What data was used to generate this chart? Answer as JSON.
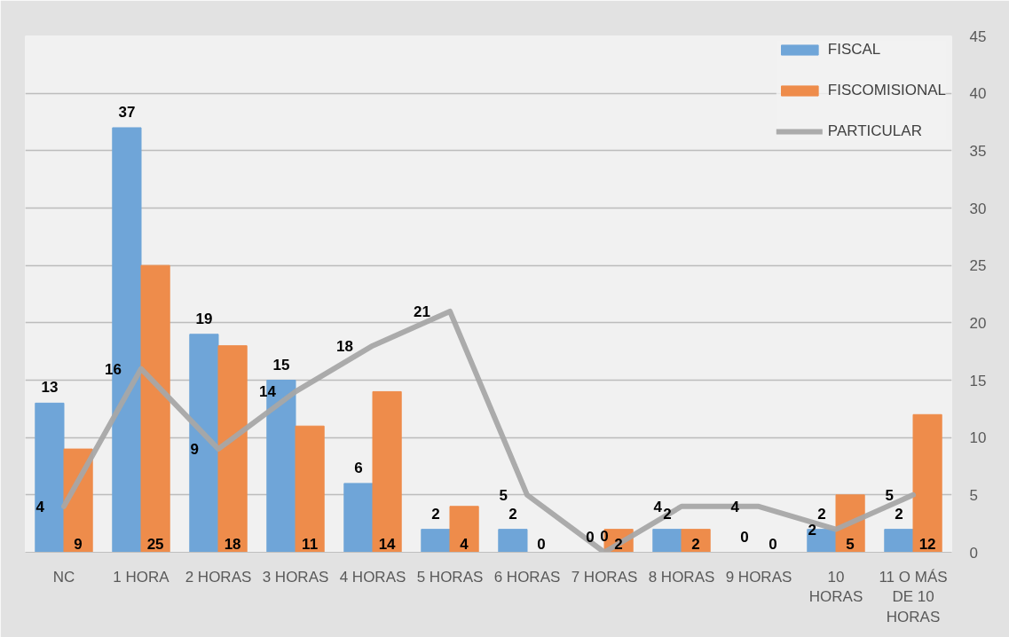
{
  "chart_data": {
    "type": "bar",
    "categories": [
      "NC",
      "1 HORA",
      "2 HORAS",
      "3 HORAS",
      "4 HORAS",
      "5 HORAS",
      "6 HORAS",
      "7 HORAS",
      "8 HORAS",
      "9 HORAS",
      "10 HORAS",
      "11 O MÁS DE 10 HORAS"
    ],
    "series": [
      {
        "name": "FISCAL",
        "color": "#6fa5d8",
        "values": [
          13,
          37,
          19,
          15,
          6,
          2,
          2,
          0,
          2,
          0,
          2,
          2
        ]
      },
      {
        "name": "FISCOMISIONAL",
        "color": "#ee8c4b",
        "values": [
          9,
          25,
          18,
          11,
          14,
          4,
          0,
          2,
          2,
          0,
          5,
          12
        ]
      },
      {
        "name": "PARTICULAR",
        "type": "line",
        "color": "#a6a6a6",
        "values": [
          4,
          16,
          9,
          14,
          18,
          21,
          5,
          0,
          4,
          4,
          2,
          5
        ]
      }
    ],
    "ylim": [
      0,
      45
    ],
    "yticks": [
      0,
      5,
      10,
      15,
      20,
      25,
      30,
      35,
      40,
      45
    ],
    "grid": "y",
    "legend": "top right",
    "data_labels": true
  }
}
